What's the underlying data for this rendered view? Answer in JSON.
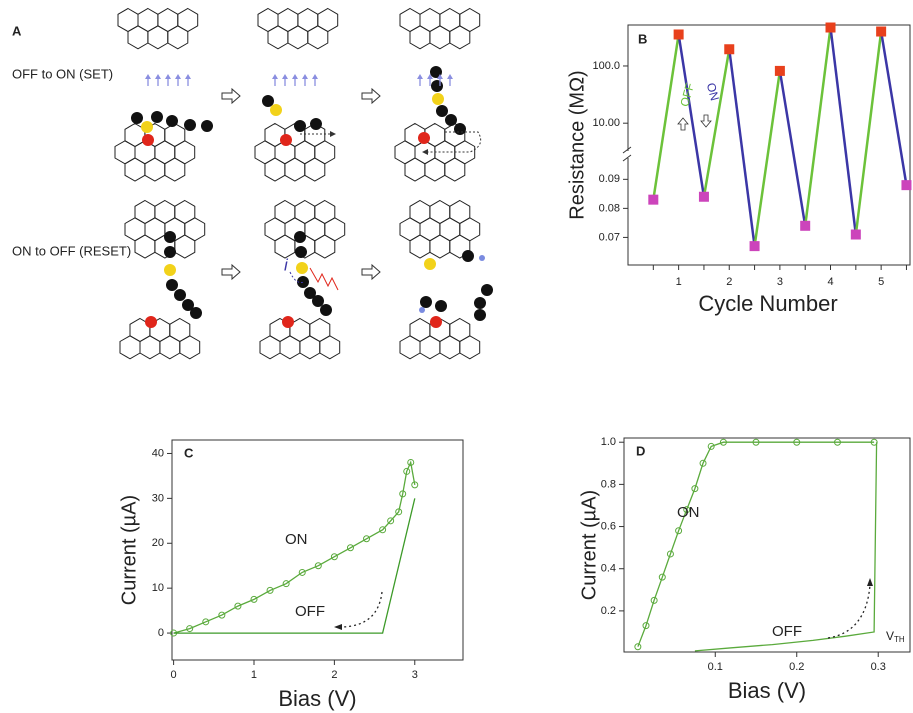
{
  "panel_a": {
    "label": "A",
    "set_caption": "OFF to ON (SET)",
    "reset_caption": "ON to OFF (RESET)",
    "current_symbol": "i"
  },
  "chart_data": [
    {
      "type": "broken-axis-scatter",
      "panel_label": "B",
      "x_label": "Cycle Number",
      "y_label": "Resistance (MΩ)",
      "xlim": [
        0,
        5.57
      ],
      "xticks": [
        1,
        2,
        3,
        4,
        5
      ],
      "xticks_minor": [
        0.5,
        1.5,
        2.5,
        3.5,
        4.5,
        5.5
      ],
      "ylim": [
        0.0605,
        0.097
      ],
      "yticks": [
        0.07,
        0.08,
        0.09
      ],
      "ylim_upper": [
        3.4,
        520
      ],
      "yticks_upper": [
        {
          "value": 10,
          "label": "10.00"
        },
        {
          "value": 100,
          "label": "100.0"
        }
      ],
      "log_scale_upper": true,
      "rise_color": "#6cc23a",
      "fall_color": "#3b36a6",
      "annotations": [
        "OFF",
        "ON"
      ],
      "series": [
        {
          "color": "#cc44bb",
          "x": [
            0.5,
            1.5,
            2.5,
            3.5,
            4.5,
            5.5
          ],
          "values": [
            0.083,
            0.084,
            0.067,
            0.074,
            0.071,
            0.088
          ]
        },
        {
          "color": "#e8401c",
          "axis": "y_upper",
          "x": [
            1,
            2,
            3,
            4,
            5
          ],
          "values": [
            355,
            196,
            82,
            470,
            400
          ]
        }
      ]
    },
    {
      "type": "scatter",
      "panel_label": "C",
      "x_label": "Bias (V)",
      "y_label": "Current (µA)",
      "xlim": [
        -0.02,
        3.6
      ],
      "xticks": [
        0,
        1,
        2,
        3
      ],
      "ylim": [
        -6,
        43
      ],
      "yticks": [
        0,
        10,
        20,
        30,
        40
      ],
      "series": [
        {
          "name": "ON",
          "color": "#5aaa3c",
          "x": [
            0,
            0.2,
            0.4,
            0.6,
            0.8,
            1.0,
            1.2,
            1.4,
            1.6,
            1.8,
            2.0,
            2.2,
            2.4,
            2.6,
            2.7,
            2.8,
            2.85,
            2.9,
            2.95,
            3.0
          ],
          "values": [
            0,
            1,
            2.5,
            4,
            6,
            7.5,
            9.5,
            11,
            13.5,
            15,
            17,
            19,
            21,
            23,
            25,
            27,
            31,
            36,
            38,
            33
          ]
        },
        {
          "name": "OFF",
          "color": "#3c9a28",
          "x": [
            0,
            1.6,
            2.0,
            2.6,
            3.0
          ],
          "values": [
            0,
            0,
            0,
            0,
            30
          ]
        }
      ]
    },
    {
      "type": "scatter",
      "panel_label": "D",
      "x_label": "Bias (V)",
      "y_label": "Current (µA)",
      "xlim": [
        -0.012,
        0.339
      ],
      "xticks": [
        0.1,
        0.2,
        0.3
      ],
      "ylim": [
        0.005,
        1.02
      ],
      "yticks": [
        0.2,
        0.4,
        0.6,
        {
          "value": 0.8,
          "label": "0.8"
        },
        {
          "value": 1,
          "label": "1.0"
        }
      ],
      "threshold_label": {
        "main": "V",
        "sub": "TH"
      },
      "series": [
        {
          "name": "ON",
          "color": "#5aaa3c",
          "x": [
            0.005,
            0.015,
            0.025,
            0.035,
            0.045,
            0.055,
            0.065,
            0.075,
            0.085,
            0.095,
            0.11,
            0.15,
            0.2,
            0.25,
            0.295
          ],
          "values": [
            0.03,
            0.13,
            0.25,
            0.36,
            0.47,
            0.58,
            0.68,
            0.78,
            0.9,
            0.98,
            1.0,
            1.0,
            1.0,
            1.0,
            1.0
          ]
        },
        {
          "name": "OFF",
          "color": "#5aaa3c",
          "x": [
            0.075,
            0.12,
            0.17,
            0.22,
            0.26,
            0.295,
            0.298
          ],
          "values": [
            0.01,
            0.025,
            0.04,
            0.06,
            0.08,
            0.1,
            1.0
          ]
        }
      ]
    }
  ]
}
